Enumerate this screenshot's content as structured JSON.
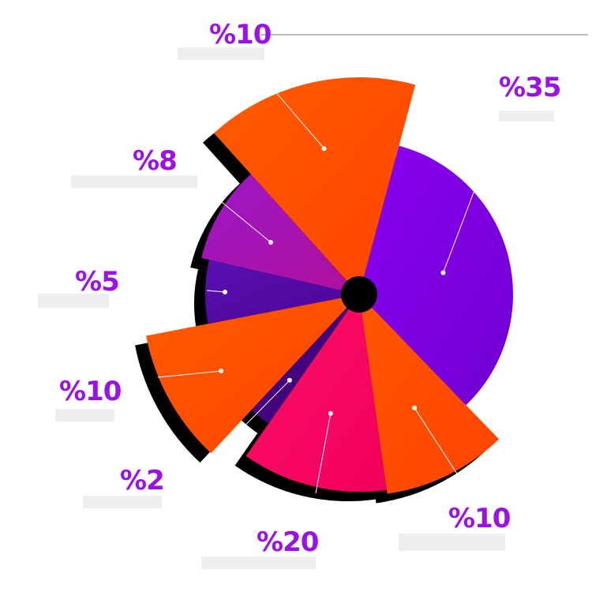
{
  "chart_data": {
    "type": "pie",
    "slices": [
      {
        "label": "%35",
        "value": 35,
        "color": "#8a00f0",
        "colorEnd": "#7100d2"
      },
      {
        "label": "%10",
        "value": 10,
        "color": "#ff5500",
        "colorEnd": "#ff4400"
      },
      {
        "label": "%20",
        "value": 20,
        "color": "#ff1066",
        "colorEnd": "#f0005a"
      },
      {
        "label": "%2",
        "value": 2,
        "color": "#4a0a8a",
        "colorEnd": "#3c0070"
      },
      {
        "label": "%10",
        "value": 10,
        "color": "#ff5a00",
        "colorEnd": "#ff4400"
      },
      {
        "label": "%5",
        "value": 5,
        "color": "#5a10b0",
        "colorEnd": "#4a0598"
      },
      {
        "label": "%8",
        "value": 8,
        "color": "#9b17c8",
        "colorEnd": "#b0109a"
      },
      {
        "label": "%10",
        "value": 10,
        "color": "#ff5a00",
        "colorEnd": "#ff4400"
      }
    ]
  }
}
